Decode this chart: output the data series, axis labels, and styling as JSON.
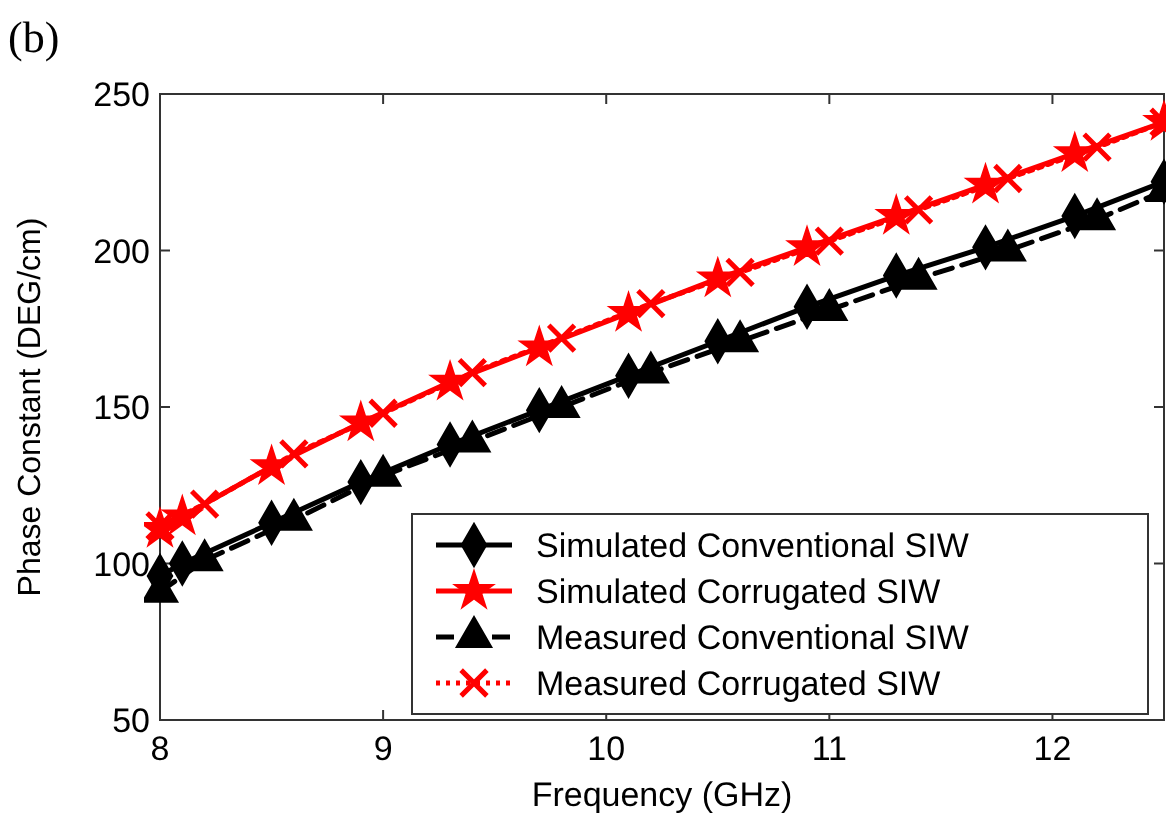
{
  "chart_data": {
    "type": "line",
    "xlabel": "Frequency (GHz)",
    "ylabel": "Phase Constant (DEG/cm)",
    "annotations": [
      "(b)"
    ],
    "xlim": [
      8,
      12.5
    ],
    "ylim": [
      50,
      250
    ],
    "xticks": [
      8,
      9,
      10,
      11,
      12
    ],
    "yticks": [
      50,
      100,
      150,
      200,
      250
    ],
    "grid": false,
    "legend": "bottom right",
    "series": [
      {
        "name": "Simulated Conventional SIW",
        "color": "#000000",
        "marker": "diamond",
        "line_style": "solid",
        "x": [
          8,
          8.1,
          8.5,
          8.9,
          9.3,
          9.7,
          10.1,
          10.5,
          10.9,
          11.3,
          11.7,
          12.1,
          12.5
        ],
        "values": [
          96,
          100,
          113,
          126,
          138,
          149,
          160,
          171,
          182,
          192,
          201,
          211,
          222
        ]
      },
      {
        "name": "Simulated Corrugated SIW",
        "color": "#ff0000",
        "marker": "star",
        "line_style": "solid",
        "x": [
          8,
          8.1,
          8.5,
          8.9,
          9.3,
          9.7,
          10.1,
          10.5,
          10.9,
          11.3,
          11.7,
          12.1,
          12.5
        ],
        "values": [
          111,
          115,
          131,
          145,
          158,
          169,
          180,
          191,
          201,
          211,
          221,
          231,
          241
        ]
      },
      {
        "name": "Measured Conventional SIW",
        "color": "#000000",
        "marker": "triangle",
        "line_style": "dashed",
        "x": [
          8,
          8.2,
          8.6,
          9.0,
          9.4,
          9.8,
          10.2,
          10.6,
          11.0,
          11.4,
          11.8,
          12.2,
          12.5
        ],
        "values": [
          91,
          101,
          114,
          128,
          139,
          150,
          161,
          171,
          181,
          191,
          200,
          210,
          219
        ]
      },
      {
        "name": "Measured Corrugated SIW",
        "color": "#ff0000",
        "marker": "cross",
        "line_style": "dotted",
        "x": [
          8,
          8.2,
          8.6,
          9.0,
          9.4,
          9.8,
          10.2,
          10.6,
          11.0,
          11.4,
          11.8,
          12.2,
          12.5
        ],
        "values": [
          112,
          119,
          135,
          148,
          161,
          172,
          183,
          193,
          203,
          213,
          223,
          233,
          241
        ]
      }
    ]
  }
}
